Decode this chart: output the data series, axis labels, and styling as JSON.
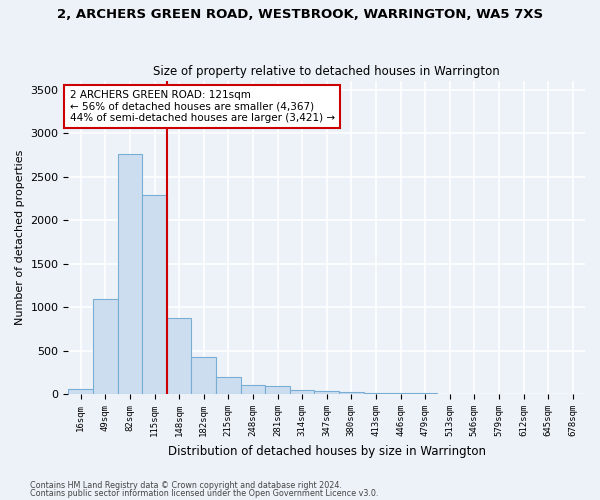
{
  "title": "2, ARCHERS GREEN ROAD, WESTBROOK, WARRINGTON, WA5 7XS",
  "subtitle": "Size of property relative to detached houses in Warrington",
  "xlabel": "Distribution of detached houses by size in Warrington",
  "ylabel": "Number of detached properties",
  "bar_color": "#ccddf0",
  "bar_edge_color": "#7aadd4",
  "categories": [
    "16sqm",
    "49sqm",
    "82sqm",
    "115sqm",
    "148sqm",
    "182sqm",
    "215sqm",
    "248sqm",
    "281sqm",
    "314sqm",
    "347sqm",
    "380sqm",
    "413sqm",
    "446sqm",
    "479sqm",
    "513sqm",
    "546sqm",
    "579sqm",
    "612sqm",
    "645sqm",
    "678sqm"
  ],
  "values": [
    55,
    1090,
    2760,
    2290,
    880,
    430,
    200,
    105,
    90,
    50,
    38,
    28,
    18,
    13,
    10,
    7,
    5,
    3,
    2,
    2,
    2
  ],
  "vline_color": "#cc0000",
  "vline_index": 3,
  "annotation_text": "2 ARCHERS GREEN ROAD: 121sqm\n← 56% of detached houses are smaller (4,367)\n44% of semi-detached houses are larger (3,421) →",
  "ylim": [
    0,
    3600
  ],
  "yticks": [
    0,
    500,
    1000,
    1500,
    2000,
    2500,
    3000,
    3500
  ],
  "footer1": "Contains HM Land Registry data © Crown copyright and database right 2024.",
  "footer2": "Contains public sector information licensed under the Open Government Licence v3.0.",
  "bg_color": "#edf2f9",
  "grid_color": "#ffffff"
}
